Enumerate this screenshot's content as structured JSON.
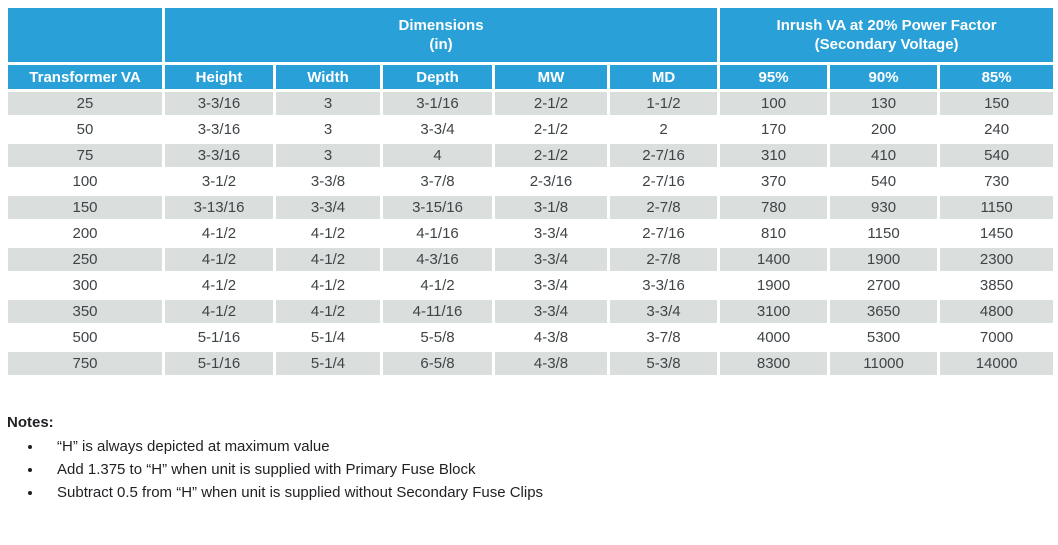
{
  "colors": {
    "header_blue": "#2AA0D8",
    "row_gray": "#DADEDD",
    "body_text": "#3F4447",
    "header_text": "#FFFFFF",
    "notes_text": "#1F2023"
  },
  "table": {
    "group_headers": {
      "dimensions": {
        "line1": "Dimensions",
        "line2": "(in)"
      },
      "inrush": {
        "line1": "Inrush VA at 20% Power Factor",
        "line2": "(Secondary Voltage)"
      }
    },
    "columns": [
      "Transformer VA",
      "Height",
      "Width",
      "Depth",
      "MW",
      "MD",
      "95%",
      "90%",
      "85%"
    ],
    "rows": [
      [
        "25",
        "3-3/16",
        "3",
        "3-1/16",
        "2-1/2",
        "1-1/2",
        "100",
        "130",
        "150"
      ],
      [
        "50",
        "3-3/16",
        "3",
        "3-3/4",
        "2-1/2",
        "2",
        "170",
        "200",
        "240"
      ],
      [
        "75",
        "3-3/16",
        "3",
        "4",
        "2-1/2",
        "2-7/16",
        "310",
        "410",
        "540"
      ],
      [
        "100",
        "3-1/2",
        "3-3/8",
        "3-7/8",
        "2-3/16",
        "2-7/16",
        "370",
        "540",
        "730"
      ],
      [
        "150",
        "3-13/16",
        "3-3/4",
        "3-15/16",
        "3-1/8",
        "2-7/8",
        "780",
        "930",
        "1150"
      ],
      [
        "200",
        "4-1/2",
        "4-1/2",
        "4-1/16",
        "3-3/4",
        "2-7/16",
        "810",
        "1150",
        "1450"
      ],
      [
        "250",
        "4-1/2",
        "4-1/2",
        "4-3/16",
        "3-3/4",
        "2-7/8",
        "1400",
        "1900",
        "2300"
      ],
      [
        "300",
        "4-1/2",
        "4-1/2",
        "4-1/2",
        "3-3/4",
        "3-3/16",
        "1900",
        "2700",
        "3850"
      ],
      [
        "350",
        "4-1/2",
        "4-1/2",
        "4-11/16",
        "3-3/4",
        "3-3/4",
        "3100",
        "3650",
        "4800"
      ],
      [
        "500",
        "5-1/16",
        "5-1/4",
        "5-5/8",
        "4-3/8",
        "3-7/8",
        "4000",
        "5300",
        "7000"
      ],
      [
        "750",
        "5-1/16",
        "5-1/4",
        "6-5/8",
        "4-3/8",
        "5-3/8",
        "8300",
        "11000",
        "14000"
      ]
    ]
  },
  "notes": {
    "title": "Notes:",
    "items": [
      "“H” is always depicted at maximum value",
      "Add 1.375 to “H” when unit is supplied with Primary Fuse Block",
      "Subtract 0.5 from “H” when unit is supplied without Secondary Fuse Clips"
    ]
  }
}
